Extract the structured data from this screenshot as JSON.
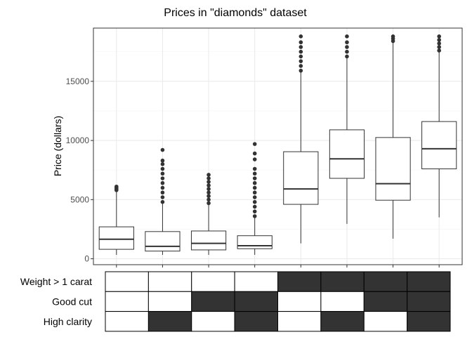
{
  "chart_data": {
    "type": "box",
    "title": "Prices in \"diamonds\" dataset",
    "xlabel": "",
    "ylabel": "Price (dollars)",
    "ylim": [
      -500,
      19500
    ],
    "yticks": [
      0,
      5000,
      10000,
      15000
    ],
    "grid": true,
    "boxes": [
      {
        "whisker_low": 330,
        "q1": 800,
        "median": 1650,
        "q3": 2700,
        "whisker_high": 5700,
        "outliers": [
          5800,
          5900,
          6000,
          6100
        ]
      },
      {
        "whisker_low": 330,
        "q1": 650,
        "median": 1050,
        "q3": 2300,
        "whisker_high": 4700,
        "outliers": [
          4800,
          5200,
          5600,
          6000,
          6400,
          6800,
          7200,
          7600,
          8000,
          8300,
          9200
        ]
      },
      {
        "whisker_low": 330,
        "q1": 750,
        "median": 1300,
        "q3": 2350,
        "whisker_high": 4650,
        "outliers": [
          4700,
          5000,
          5300,
          5600,
          5900,
          6200,
          6500,
          6800,
          7100
        ]
      },
      {
        "whisker_low": 330,
        "q1": 850,
        "median": 1100,
        "q3": 1950,
        "whisker_high": 3500,
        "outliers": [
          3600,
          4000,
          4400,
          4800,
          5200,
          5600,
          6000,
          6400,
          6800,
          7200,
          7600,
          8400,
          8900,
          9700
        ]
      },
      {
        "whisker_low": 1300,
        "q1": 4600,
        "median": 5900,
        "q3": 9050,
        "whisker_high": 15800,
        "outliers": [
          15900,
          16300,
          16700,
          17100,
          17500,
          17900,
          18300,
          18800
        ]
      },
      {
        "whisker_low": 2950,
        "q1": 6800,
        "median": 8450,
        "q3": 10900,
        "whisker_high": 17000,
        "outliers": [
          17100,
          17500,
          17900,
          18300,
          18800
        ]
      },
      {
        "whisker_low": 1700,
        "q1": 4950,
        "median": 6350,
        "q3": 10250,
        "whisker_high": 18300,
        "outliers": [
          18400,
          18600,
          18800
        ]
      },
      {
        "whisker_low": 3500,
        "q1": 7600,
        "median": 9300,
        "q3": 11600,
        "whisker_high": 17500,
        "outliers": [
          17600,
          17900,
          18200,
          18500,
          18800
        ]
      }
    ]
  },
  "indicator_rows": [
    {
      "label": "Weight > 1 carat",
      "values": [
        false,
        false,
        false,
        false,
        true,
        true,
        true,
        true
      ]
    },
    {
      "label": "Good cut",
      "values": [
        false,
        false,
        true,
        true,
        false,
        false,
        true,
        true
      ]
    },
    {
      "label": "High clarity",
      "values": [
        false,
        true,
        false,
        true,
        false,
        true,
        false,
        true
      ]
    }
  ],
  "colors": {
    "box_line": "#333333",
    "filled_cell": "#333333",
    "grid_major": "#ebebeb",
    "grid_minor": "#f5f5f5",
    "panel_border": "#333333"
  }
}
